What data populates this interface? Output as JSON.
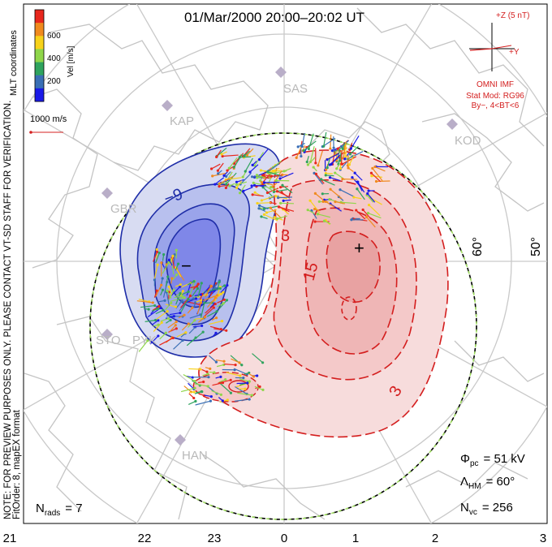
{
  "title": "01/Mar/2000 20:00–20:02 UT",
  "colorbar": {
    "label": "Vel [m/s]",
    "ticks": [
      "600",
      "400",
      "200"
    ],
    "colors": [
      "#e8271d",
      "#f08a1e",
      "#f7d21a",
      "#8fd64a",
      "#2fa35e",
      "#3a6fb5",
      "#1a1ae8"
    ]
  },
  "coord_label": "MLT coordinates",
  "vector_scale": "1000 m/s",
  "imf": {
    "z_label": "+Z (5 nT)",
    "y_label": "+Y",
    "source": "OMNI IMF",
    "model": "Stat Mod: RG96",
    "model_params": "By−, 4<BT<6",
    "color": "#d42020"
  },
  "note": "NOTE: FOR PREVIEW PURPOSES ONLY. PLEASE CONTACT VT-SD STAFF FOR VERIFICATION.",
  "fit_order": "FitOrder: 8, mapEX format",
  "stations": [
    "SAS",
    "KAP",
    "KOD",
    "GBR",
    "STO",
    "PYK",
    "HAN"
  ],
  "lat_labels": [
    "60°",
    "50°"
  ],
  "contour_labels": [
    "−9",
    "3",
    "15",
    "3"
  ],
  "extrema": [
    "−",
    "+"
  ],
  "mlt_ticks": [
    "21",
    "22",
    "23",
    "0",
    "1",
    "2",
    "3"
  ],
  "stats": {
    "phi_symbol": "Φ",
    "phi_sub": "pc",
    "phi_value": "= 51 kV",
    "lambda_symbol": "Λ",
    "lambda_sub": "HM",
    "lambda_value": "= 60°",
    "nvc_symbol": "N",
    "nvc_sub": "vc",
    "nvc_value": "= 256",
    "nrads_symbol": "N",
    "nrads_sub": "rads",
    "nrads_value": "= 7"
  }
}
